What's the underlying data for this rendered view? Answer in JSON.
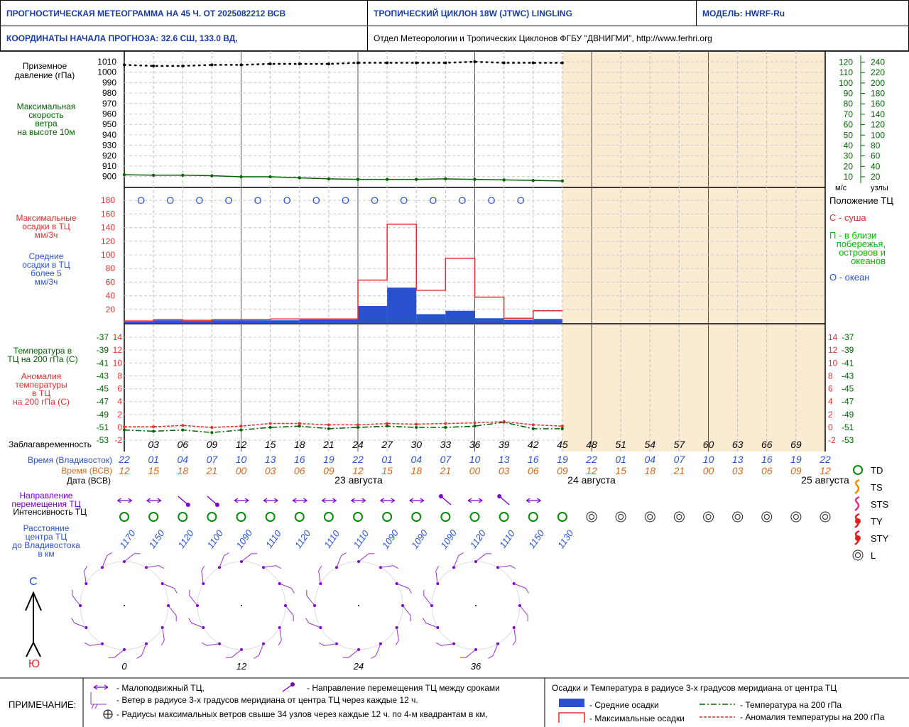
{
  "header": {
    "title": "ПРОГНОСТИЧЕСКАЯ МЕТЕОГРАММА НА 45 Ч. ОТ 2025082212 ВСВ",
    "cyclone": "ТРОПИЧЕСКИЙ ЦИКЛОН  18W  (JTWC)   LINGLING",
    "model": "МОДЕЛЬ:   HWRF-Ru",
    "coords": "КООРДИНАТЫ НАЧАЛА ПРОГНОЗА:  32.6  СШ,   133.0  ВД,",
    "org": "Отдел Метеорологии и Тропических Циклонов ФГБУ \"ДВНИГМИ\",  http://www.ferhri.org"
  },
  "labels": {
    "pressure": [
      "Приземное",
      "давление (гПа)"
    ],
    "wind": [
      "Максимальная",
      "скорость",
      "ветра",
      "на высоте 10м"
    ],
    "precip_max": [
      "Максимальные",
      "осадки в ТЦ",
      "мм/3ч"
    ],
    "precip_avg": [
      "Средние",
      "осадки в ТЦ",
      "более 5",
      "мм/3ч"
    ],
    "temp": [
      "Температура в",
      "ТЦ на 200 гПа (С)"
    ],
    "anom": [
      "Аномалия",
      "температуры",
      "в ТЦ",
      "на 200 гПа (С)"
    ],
    "wind_units_ms": "м/с",
    "wind_units_kt": "узлы",
    "position_title": "Положение ТЦ",
    "pos_land": "С - суша",
    "pos_coast": [
      "П - в близи",
      "побережья,",
      "островов и",
      "океанов"
    ],
    "pos_ocean": "О - океан",
    "leadtime": "Заблагавременность",
    "time_vlad": "Время (Владивосток)",
    "time_vsv": "Время (ВСВ)",
    "date_vsv": "Дата (ВСВ)",
    "direction": [
      "Направление",
      "перемещения ТЦ"
    ],
    "intensity": "Интенсивность ТЦ",
    "distance": [
      "Расстояние",
      "центра ТЦ",
      "до Владивостока",
      "в км"
    ],
    "north": "С",
    "south": "Ю",
    "intensity_legend": [
      "TD",
      "TS",
      "STS",
      "TY",
      "STY",
      "L"
    ]
  },
  "chart_data": {
    "type": "line",
    "lead_hours": [
      0,
      3,
      6,
      9,
      12,
      15,
      18,
      21,
      24,
      27,
      30,
      33,
      36,
      39,
      42,
      45,
      48,
      51,
      54,
      57,
      60,
      63,
      66,
      69,
      72
    ],
    "lead_labels": [
      "",
      "03",
      "06",
      "09",
      "12",
      "15",
      "18",
      "21",
      "24",
      "27",
      "30",
      "33",
      "36",
      "39",
      "42",
      "45",
      "48",
      "51",
      "54",
      "57",
      "60",
      "63",
      "66",
      "69",
      ""
    ],
    "time_vlad": [
      "22",
      "01",
      "04",
      "07",
      "10",
      "13",
      "16",
      "19",
      "22",
      "01",
      "04",
      "07",
      "10",
      "13",
      "16",
      "19",
      "22",
      "01",
      "04",
      "07",
      "10",
      "13",
      "16",
      "19",
      "22"
    ],
    "time_vsv": [
      "12",
      "15",
      "18",
      "21",
      "00",
      "03",
      "06",
      "09",
      "12",
      "15",
      "18",
      "21",
      "00",
      "03",
      "06",
      "09",
      "12",
      "15",
      "18",
      "21",
      "00",
      "03",
      "06",
      "09",
      "12"
    ],
    "dates": [
      "23 августа",
      "24 августа",
      "25 августа"
    ],
    "pressure_axis": [
      1010,
      1000,
      990,
      980,
      970,
      960,
      950,
      940,
      930,
      920,
      910,
      900
    ],
    "pressure": [
      1007,
      1006,
      1006,
      1007,
      1007,
      1008,
      1008,
      1008,
      1009,
      1009,
      1009,
      1009,
      1010,
      1009,
      1009,
      1009
    ],
    "wind_knots": [
      24,
      23,
      23,
      22,
      20,
      20,
      18,
      16,
      15,
      15,
      15,
      16,
      15,
      14,
      13,
      12
    ],
    "wind_axis_ms": [
      120,
      110,
      100,
      90,
      80,
      70,
      60,
      50,
      40,
      30,
      20,
      10
    ],
    "wind_axis_kt": [
      240,
      220,
      200,
      180,
      160,
      140,
      120,
      100,
      80,
      60,
      40,
      20
    ],
    "position": [
      "O",
      "O",
      "O",
      "O",
      "O",
      "O",
      "O",
      "O",
      "O",
      "O",
      "O",
      "O",
      "O",
      "O"
    ],
    "precip_axis": [
      180,
      160,
      140,
      120,
      100,
      80,
      60,
      40,
      20
    ],
    "precip_max": [
      3,
      5,
      4,
      5,
      5,
      6,
      6,
      6,
      63,
      145,
      48,
      95,
      38,
      7,
      18
    ],
    "precip_avg": [
      2,
      4,
      3,
      4,
      4,
      4,
      5,
      5,
      25,
      52,
      13,
      18,
      7,
      5,
      6
    ],
    "temp_axis_c": [
      -37,
      -39,
      -41,
      -43,
      -45,
      -47,
      -49,
      -51,
      -53
    ],
    "anom_axis": [
      14,
      12,
      10,
      8,
      6,
      4,
      2,
      0,
      -2
    ],
    "temp200": [
      -51.2,
      -51.3,
      -51.2,
      -51.4,
      -51.2,
      -51.0,
      -50.9,
      -51.1,
      -51.0,
      -50.9,
      -51.0,
      -51.0,
      -50.9,
      -50.6,
      -51.1,
      -51.1
    ],
    "anom200": [
      0.1,
      0.1,
      0.3,
      0.0,
      0.2,
      0.6,
      0.6,
      0.4,
      0.4,
      0.6,
      0.5,
      0.6,
      0.7,
      0.9,
      0.4,
      0.2
    ],
    "direction": [
      "stationary",
      "stationary",
      "ne",
      "ne",
      "stationary",
      "stationary",
      "stationary",
      "stationary",
      "stationary",
      "stationary",
      "stationary",
      "sw",
      "stationary",
      "sw",
      "stationary"
    ],
    "intensity": [
      "TD",
      "TD",
      "TD",
      "TD",
      "TD",
      "TD",
      "TD",
      "TD",
      "TD",
      "TD",
      "TD",
      "TD",
      "TD",
      "TD",
      "TD",
      "TD",
      "L",
      "L",
      "L",
      "L",
      "L",
      "L",
      "L",
      "L",
      "L"
    ],
    "distance_km": [
      "1170",
      "1150",
      "1120",
      "1100",
      "1090",
      "1110",
      "1120",
      "1110",
      "1110",
      "1090",
      "1090",
      "1090",
      "1120",
      "1110",
      "1150",
      "1130"
    ],
    "wind_roses": [
      "0",
      "12",
      "24",
      "36"
    ],
    "colors": {
      "pressure": "#000000",
      "wind": "#006400",
      "precip_max": "#e03030",
      "precip_avg": "#2a52d0",
      "temp": "#006400",
      "anom": "#e03030",
      "forecast_shade": "#fcebd3",
      "vladivostok_time": "#2a52d0",
      "vsv_time": "#d2691e",
      "direction": "#7a00cc"
    }
  },
  "legend": {
    "title": "ПРИМЕЧАНИЕ:",
    "stationary": "- Малоподвижный ТЦ,",
    "move_dir": "- Направление перемещения ТЦ между сроками",
    "wind_radius": "- Ветер в радиусе 3-х градусов меридиана от центра ТЦ через каждые 12 ч.",
    "max_radius": "- Радиусы максимальных ветров свыше 34 узлов через каждые 12 ч. по 4-м квадрантам в км,",
    "box_title": "Осадки и Температура в радиусе 3-х градусов меридиана от центра ТЦ",
    "avg_precip": "- Средние осадки",
    "max_precip": "- Максимальные осадки",
    "temp": "- Температура на 200 гПа",
    "anom": "- Аномалия температуры на 200 гПа"
  }
}
